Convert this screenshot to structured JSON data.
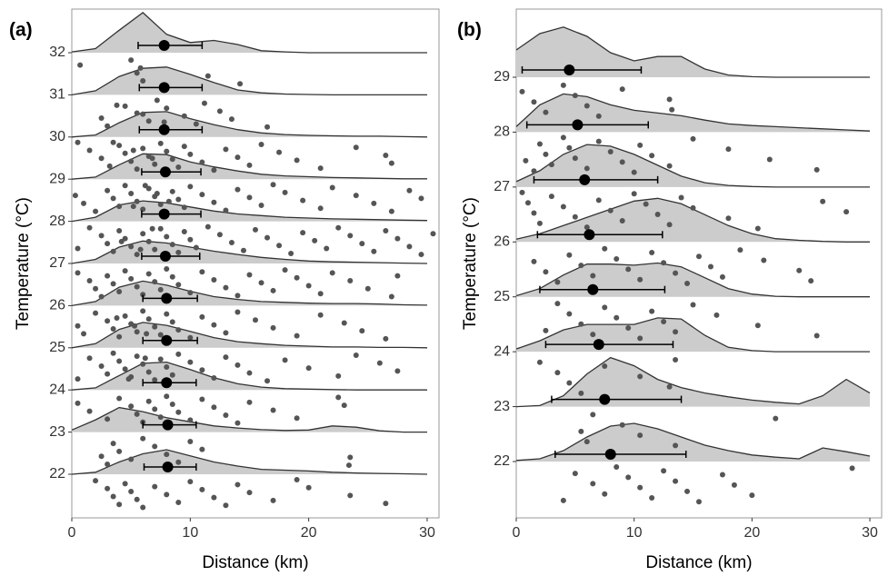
{
  "chart_data": [
    {
      "type": "raincloud",
      "panel_label": "(a)",
      "xlabel": "Distance (km)",
      "ylabel": "Temperature (°C)",
      "xlim": [
        0,
        31
      ],
      "xticks": [
        0,
        10,
        20,
        30
      ],
      "density_x": [
        0,
        2,
        4,
        6,
        8,
        10,
        12,
        14,
        16,
        18,
        20,
        22,
        24,
        26,
        28,
        30
      ],
      "rows": [
        {
          "label": "32",
          "mean": 7.8,
          "interval": [
            5.6,
            11.0
          ],
          "density": [
            0.02,
            0.1,
            0.55,
            0.98,
            0.45,
            0.25,
            0.3,
            0.2,
            0.05,
            0.02,
            0,
            0,
            0,
            0,
            0,
            0
          ],
          "points": [
            0.7,
            5.5,
            6.0,
            5.0,
            5.8,
            11.5,
            14.2
          ]
        },
        {
          "label": "31",
          "mean": 7.8,
          "interval": [
            5.7,
            11.0
          ],
          "density": [
            0,
            0.1,
            0.45,
            0.65,
            0.68,
            0.5,
            0.3,
            0.12,
            0.05,
            0.02,
            0.01,
            0,
            0,
            0,
            0,
            0
          ],
          "points": [
            2.5,
            3.0,
            3.8,
            5.5,
            6.5,
            7.2,
            8.0,
            9.5,
            10.5,
            11.2,
            12.5,
            13.5,
            16.5,
            4.5,
            6.0,
            7.8
          ]
        },
        {
          "label": "30",
          "mean": 7.8,
          "interval": [
            5.7,
            11.0
          ],
          "density": [
            0,
            0.05,
            0.35,
            0.6,
            0.62,
            0.45,
            0.3,
            0.18,
            0.1,
            0.06,
            0.04,
            0.03,
            0.02,
            0.02,
            0.01,
            0
          ],
          "points": [
            0.5,
            1.5,
            2.5,
            3.2,
            4.0,
            4.5,
            5.0,
            5.5,
            6.0,
            6.5,
            7.0,
            7.5,
            8.0,
            8.5,
            9.0,
            9.5,
            10.0,
            11.0,
            12.0,
            13.0,
            14.0,
            15.0,
            16.0,
            17.5,
            19.0,
            21.0,
            24.0,
            26.5,
            27.0,
            3.5,
            5.2,
            6.8
          ]
        },
        {
          "label": "29",
          "mean": 7.9,
          "interval": [
            5.9,
            10.9
          ],
          "density": [
            0,
            0.05,
            0.35,
            0.62,
            0.6,
            0.42,
            0.3,
            0.2,
            0.12,
            0.08,
            0.06,
            0.04,
            0.03,
            0.02,
            0.01,
            0.01
          ],
          "points": [
            0.3,
            1.0,
            2.0,
            3.0,
            3.5,
            4.0,
            4.5,
            5.0,
            5.5,
            6.0,
            6.5,
            7.0,
            7.5,
            8.0,
            8.5,
            9.0,
            9.5,
            10.0,
            11.0,
            12.0,
            13.0,
            14.0,
            15.0,
            16.0,
            17.0,
            18.0,
            19.5,
            21.0,
            22.0,
            24.0,
            25.5,
            27.0,
            28.5,
            29.5,
            5.2,
            6.2,
            7.2,
            8.2
          ]
        },
        {
          "label": "28",
          "mean": 7.8,
          "interval": [
            5.9,
            10.9
          ],
          "density": [
            0,
            0.1,
            0.4,
            0.5,
            0.45,
            0.35,
            0.25,
            0.18,
            0.14,
            0.1,
            0.08,
            0.06,
            0.05,
            0.04,
            0.03,
            0.02
          ],
          "points": [
            0.5,
            1.5,
            2.5,
            3.0,
            3.5,
            4.0,
            4.5,
            5.0,
            5.5,
            6.0,
            6.5,
            7.0,
            7.5,
            8.0,
            8.5,
            9.0,
            9.5,
            10.0,
            10.5,
            11.5,
            12.5,
            13.5,
            14.5,
            15.5,
            16.5,
            17.5,
            18.5,
            19.5,
            20.5,
            21.5,
            22.5,
            23.5,
            24.5,
            25.5,
            26.5,
            27.5,
            28.5,
            29.5,
            30.5,
            4.2,
            5.8,
            6.8
          ]
        },
        {
          "label": "27",
          "mean": 7.9,
          "interval": [
            5.9,
            10.8
          ],
          "density": [
            0,
            0.1,
            0.4,
            0.55,
            0.5,
            0.4,
            0.3,
            0.22,
            0.15,
            0.1,
            0.06,
            0.04,
            0.03,
            0.02,
            0.01,
            0
          ],
          "points": [
            0.5,
            1.5,
            2.0,
            2.5,
            3.0,
            3.5,
            4.0,
            4.5,
            5.0,
            5.5,
            6.0,
            6.5,
            7.0,
            7.5,
            8.0,
            8.5,
            9.0,
            10.0,
            11.0,
            12.0,
            13.0,
            14.0,
            15.0,
            16.0,
            17.0,
            18.0,
            19.0,
            20.0,
            21.0,
            22.0,
            23.5,
            25.0,
            27.0,
            27.5
          ]
        },
        {
          "label": "26",
          "mean": 8.0,
          "interval": [
            6.0,
            10.6
          ],
          "density": [
            0,
            0.1,
            0.45,
            0.6,
            0.5,
            0.35,
            0.22,
            0.15,
            0.1,
            0.08,
            0.06,
            0.05,
            0.05,
            0.04,
            0.02,
            0.01
          ],
          "points": [
            0.5,
            1.0,
            2.0,
            3.0,
            3.5,
            4.0,
            4.5,
            5.0,
            5.5,
            6.0,
            6.5,
            7.0,
            7.5,
            8.0,
            8.5,
            9.0,
            10.0,
            11.0,
            12.0,
            13.0,
            14.0,
            15.5,
            17.0,
            19.0,
            21.0,
            23.0,
            24.5,
            26.5,
            3.8,
            5.3,
            6.3
          ]
        },
        {
          "label": "25",
          "mean": 8.0,
          "interval": [
            6.0,
            10.6
          ],
          "density": [
            0,
            0.1,
            0.45,
            0.62,
            0.55,
            0.4,
            0.25,
            0.15,
            0.1,
            0.06,
            0.04,
            0.02,
            0.02,
            0.01,
            0.01,
            0
          ],
          "points": [
            0.5,
            1.5,
            2.5,
            3.0,
            3.5,
            4.0,
            4.5,
            5.0,
            5.5,
            6.0,
            6.5,
            7.0,
            7.5,
            8.0,
            8.5,
            9.0,
            10.0,
            11.0,
            12.0,
            13.0,
            14.0,
            15.0,
            16.5,
            18.0,
            20.0,
            22.5,
            24.0,
            26.0,
            27.5,
            4.8,
            6.2
          ]
        },
        {
          "label": "24",
          "mean": 8.0,
          "interval": [
            6.0,
            10.5
          ],
          "density": [
            0,
            0.05,
            0.35,
            0.65,
            0.68,
            0.5,
            0.3,
            0.15,
            0.07,
            0.03,
            0.02,
            0.01,
            0,
            0,
            0,
            0
          ],
          "points": [
            0.5,
            1.5,
            3.0,
            4.0,
            5.0,
            5.5,
            6.0,
            6.5,
            7.0,
            7.5,
            8.0,
            8.5,
            9.0,
            10.0,
            11.0,
            12.0,
            13.0,
            14.0,
            15.0,
            17.0,
            19.0,
            22.5,
            23.0
          ]
        },
        {
          "label": "23",
          "mean": 8.1,
          "interval": [
            6.0,
            10.5
          ],
          "density": [
            0.05,
            0.3,
            0.6,
            0.5,
            0.35,
            0.25,
            0.15,
            0.1,
            0.06,
            0.04,
            0.05,
            0.15,
            0.12,
            0.03,
            0,
            0
          ],
          "points": [
            2.5,
            3.0,
            3.5,
            4.0,
            5.0,
            6.0,
            7.0,
            8.0,
            9.0,
            10.0,
            11.0,
            23.5,
            23.4
          ]
        },
        {
          "label": "22",
          "mean": 8.1,
          "interval": [
            6.1,
            10.5
          ],
          "density": [
            0,
            0.05,
            0.3,
            0.5,
            0.6,
            0.45,
            0.3,
            0.2,
            0.12,
            0.1,
            0.08,
            0.05,
            0.03,
            0.02,
            0.01,
            0
          ],
          "points": [
            2.0,
            3.0,
            3.5,
            4.0,
            4.5,
            5.0,
            5.5,
            6.0,
            7.0,
            8.0,
            9.0,
            10.0,
            11.0,
            12.0,
            13.0,
            14.0,
            15.0,
            17.0,
            19.0,
            20.0,
            23.5,
            26.5
          ]
        }
      ]
    },
    {
      "type": "raincloud",
      "panel_label": "(b)",
      "xlabel": "Distance (km)",
      "ylabel": "Temperature (°C)",
      "xlim": [
        0,
        31
      ],
      "xticks": [
        0,
        10,
        20,
        30
      ],
      "density_x": [
        0,
        2,
        4,
        6,
        8,
        10,
        12,
        14,
        16,
        18,
        20,
        22,
        24,
        26,
        28,
        30
      ],
      "rows": [
        {
          "label": "29",
          "mean": 4.5,
          "interval": [
            0.5,
            10.6
          ],
          "density": [
            0.5,
            0.8,
            0.92,
            0.75,
            0.45,
            0.3,
            0.38,
            0.38,
            0.15,
            0.04,
            0.01,
            0,
            0,
            0,
            0,
            0
          ],
          "points": [
            0.5,
            1.5,
            2.5,
            4.0,
            5.0,
            6.0,
            7.0,
            9.0,
            13.0,
            13.2
          ]
        },
        {
          "label": "28",
          "mean": 5.2,
          "interval": [
            0.9,
            11.2
          ],
          "density": [
            0.1,
            0.5,
            0.7,
            0.65,
            0.5,
            0.4,
            0.35,
            0.3,
            0.22,
            0.15,
            0.12,
            0.1,
            0.08,
            0.06,
            0.04,
            0.02
          ],
          "points": [
            0.8,
            1.5,
            2.0,
            2.5,
            3.0,
            4.0,
            4.5,
            5.0,
            6.0,
            7.0,
            8.0,
            9.0,
            10.0,
            10.5,
            11.5,
            13.0,
            15.0,
            18.0,
            21.5,
            25.5
          ]
        },
        {
          "label": "27",
          "mean": 5.8,
          "interval": [
            1.5,
            12.0
          ],
          "density": [
            0.1,
            0.3,
            0.6,
            0.78,
            0.75,
            0.6,
            0.4,
            0.2,
            0.08,
            0.03,
            0.01,
            0,
            0,
            0,
            0,
            0
          ],
          "points": [
            0.5,
            1.0,
            1.5,
            2.0,
            3.0,
            4.0,
            5.0,
            6.0,
            7.0,
            8.0,
            9.0,
            10.0,
            11.0,
            12.0,
            13.0,
            14.0,
            15.0,
            18.0,
            20.5,
            26.0,
            28.0
          ]
        },
        {
          "label": "26",
          "mean": 6.2,
          "interval": [
            1.8,
            12.4
          ],
          "density": [
            0.05,
            0.15,
            0.3,
            0.45,
            0.6,
            0.75,
            0.8,
            0.7,
            0.5,
            0.3,
            0.15,
            0.06,
            0.03,
            0.01,
            0,
            0
          ],
          "points": [
            1.5,
            2.5,
            3.5,
            4.5,
            5.5,
            6.5,
            7.5,
            8.5,
            9.5,
            10.5,
            11.5,
            12.5,
            13.5,
            14.5,
            15.5,
            16.5,
            17.5,
            19.0,
            21.0,
            24.0,
            25.0
          ]
        },
        {
          "label": "25",
          "mean": 6.5,
          "interval": [
            2.0,
            12.6
          ],
          "density": [
            0.02,
            0.15,
            0.4,
            0.6,
            0.6,
            0.58,
            0.62,
            0.55,
            0.35,
            0.15,
            0.05,
            0.01,
            0,
            0,
            0,
            0
          ],
          "points": [
            2.5,
            3.5,
            4.5,
            5.5,
            6.5,
            7.5,
            8.5,
            9.5,
            10.5,
            11.5,
            12.5,
            13.5,
            15.0,
            17.0,
            20.5,
            25.5
          ]
        },
        {
          "label": "24",
          "mean": 7.0,
          "interval": [
            2.5,
            13.3
          ],
          "density": [
            0.05,
            0.2,
            0.4,
            0.5,
            0.5,
            0.5,
            0.62,
            0.6,
            0.3,
            0.08,
            0.02,
            0,
            0,
            0,
            0,
            0
          ],
          "points": [
            2.0,
            3.5,
            4.5,
            5.5,
            7.5,
            10.5,
            13.0,
            13.5
          ]
        },
        {
          "label": "23",
          "mean": 7.5,
          "interval": [
            3.0,
            14.0
          ],
          "density": [
            0,
            0.02,
            0.2,
            0.6,
            0.9,
            0.75,
            0.5,
            0.35,
            0.25,
            0.18,
            0.12,
            0.08,
            0.05,
            0.2,
            0.5,
            0.25
          ],
          "points": [
            5.5,
            6.0,
            6.5,
            9.0,
            10.5,
            13.5,
            22.0
          ]
        },
        {
          "label": "22",
          "mean": 8.0,
          "interval": [
            3.3,
            14.4
          ],
          "density": [
            0.02,
            0.05,
            0.2,
            0.45,
            0.65,
            0.7,
            0.6,
            0.45,
            0.3,
            0.2,
            0.12,
            0.08,
            0.05,
            0.25,
            0.18,
            0.1
          ],
          "points": [
            4.0,
            5.0,
            6.5,
            7.5,
            8.5,
            9.5,
            10.5,
            11.5,
            12.5,
            13.5,
            14.5,
            15.5,
            17.5,
            18.5,
            20.0,
            28.5
          ]
        }
      ]
    }
  ]
}
